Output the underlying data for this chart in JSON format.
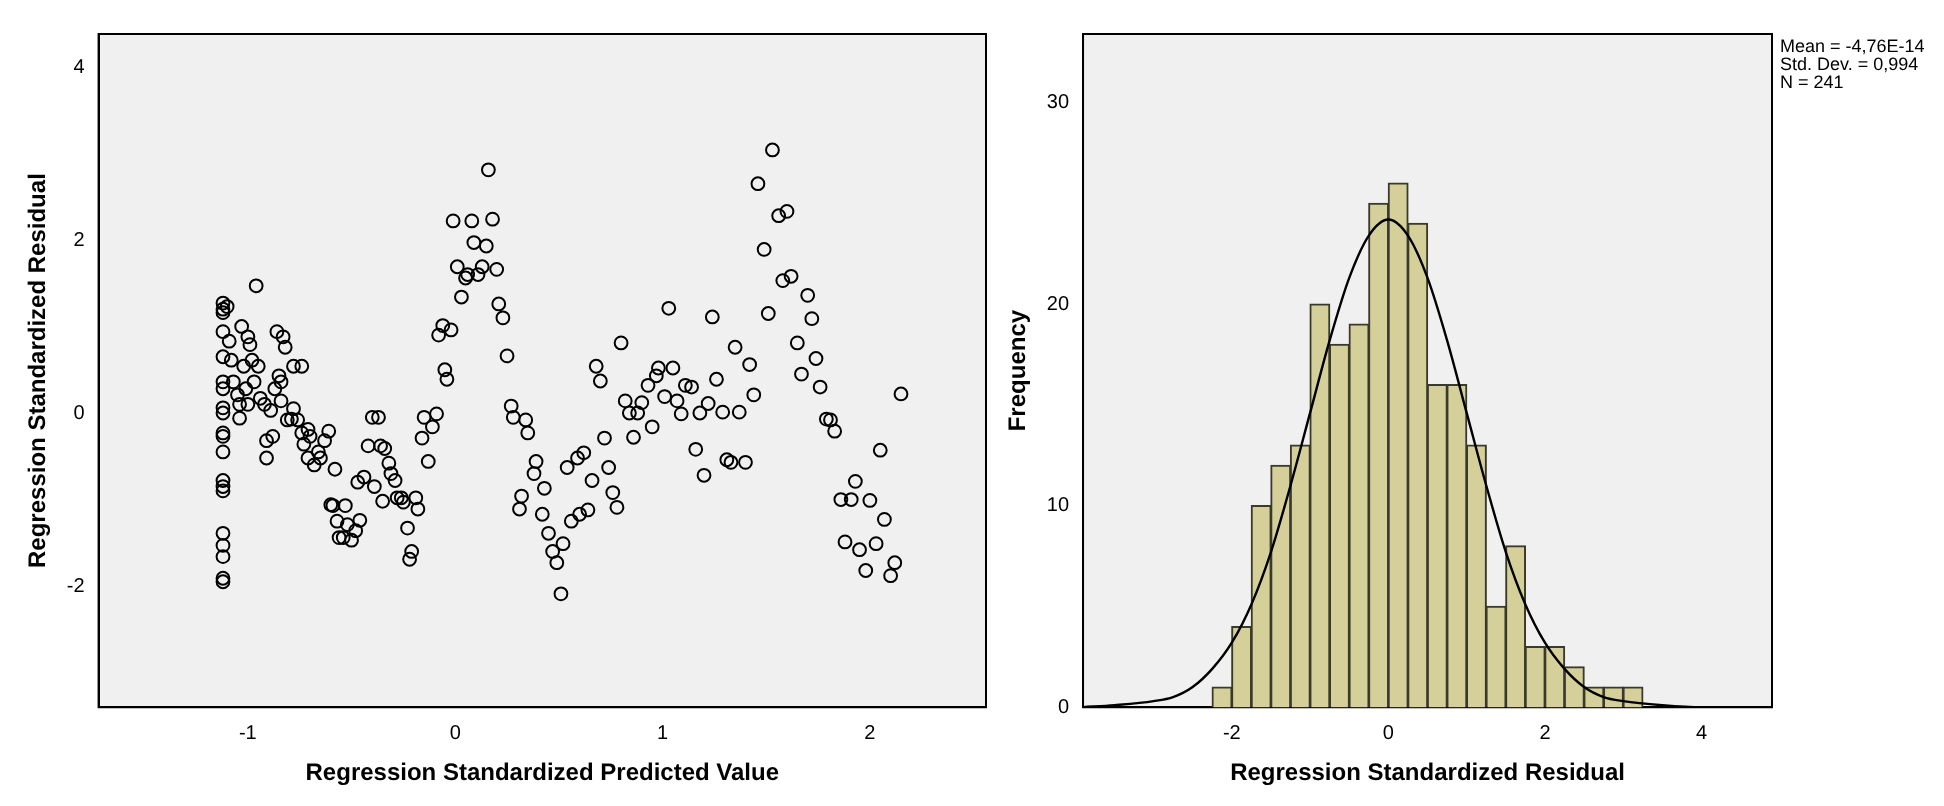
{
  "chart_data": [
    {
      "type": "scatter",
      "xlabel": "Regression Standardized Predicted Value",
      "ylabel": "Regression Standardized Residual",
      "marker": "circle",
      "color": "#000000",
      "xlim": [
        -1.72,
        2.56
      ],
      "ylim": [
        -3.39,
        4.39
      ],
      "xticks": [
        -1,
        0,
        1,
        2
      ],
      "yticks": [
        -2,
        0,
        2,
        4
      ],
      "x": [
        -1.12,
        -1.12,
        -1.12,
        -1.12,
        -1.12,
        -1.12,
        -1.12,
        -1.12,
        -1.12,
        -1.12,
        -1.12,
        -1.12,
        -1.12,
        -1.12,
        -1.12,
        -1.12,
        -1.12,
        -1.12,
        -1.12,
        -1.12,
        -1.1,
        -1.09,
        -1.08,
        -1.07,
        -1.05,
        -1.04,
        -1.04,
        -1.03,
        -1.02,
        -1.01,
        -1.0,
        -1.0,
        -0.99,
        -0.98,
        -0.97,
        -0.96,
        -0.95,
        -0.94,
        -0.92,
        -0.91,
        -0.91,
        -0.89,
        -0.88,
        -0.87,
        -0.86,
        -0.85,
        -0.84,
        -0.84,
        -0.83,
        -0.82,
        -0.81,
        -0.79,
        -0.78,
        -0.78,
        -0.76,
        -0.74,
        -0.74,
        -0.73,
        -0.71,
        -0.71,
        -0.7,
        -0.68,
        -0.66,
        -0.65,
        -0.63,
        -0.61,
        -0.6,
        -0.59,
        -0.58,
        -0.57,
        -0.56,
        -0.54,
        -0.53,
        -0.52,
        -0.5,
        -0.48,
        -0.47,
        -0.46,
        -0.44,
        -0.42,
        -0.4,
        -0.39,
        -0.37,
        -0.36,
        -0.35,
        -0.34,
        -0.32,
        -0.31,
        -0.29,
        -0.28,
        -0.26,
        -0.25,
        -0.23,
        -0.22,
        -0.21,
        -0.19,
        -0.18,
        -0.16,
        -0.15,
        -0.13,
        -0.11,
        -0.09,
        -0.08,
        -0.06,
        -0.05,
        -0.04,
        -0.02,
        -0.01,
        0.01,
        0.03,
        0.05,
        0.06,
        0.08,
        0.09,
        0.11,
        0.13,
        0.15,
        0.16,
        0.18,
        0.2,
        0.21,
        0.23,
        0.25,
        0.27,
        0.28,
        0.31,
        0.32,
        0.34,
        0.35,
        0.38,
        0.39,
        0.42,
        0.43,
        0.45,
        0.47,
        0.49,
        0.51,
        0.52,
        0.54,
        0.56,
        0.59,
        0.6,
        0.62,
        0.64,
        0.66,
        0.68,
        0.7,
        0.72,
        0.74,
        0.76,
        0.78,
        0.8,
        0.82,
        0.84,
        0.86,
        0.88,
        0.9,
        0.93,
        0.95,
        0.97,
        0.98,
        1.01,
        1.03,
        1.05,
        1.07,
        1.09,
        1.11,
        1.14,
        1.16,
        1.18,
        1.2,
        1.22,
        1.24,
        1.26,
        1.29,
        1.31,
        1.33,
        1.35,
        1.37,
        1.4,
        1.42,
        1.44,
        1.46,
        1.49,
        1.51,
        1.53,
        1.56,
        1.58,
        1.6,
        1.62,
        1.65,
        1.67,
        1.7,
        1.72,
        1.74,
        1.76,
        1.79,
        1.81,
        1.83,
        1.86,
        1.88,
        1.91,
        1.93,
        1.95,
        1.98,
        2.0,
        2.03,
        2.05,
        2.07,
        2.1,
        2.12,
        2.15
      ],
      "values": [
        1.28,
        1.21,
        1.17,
        0.95,
        0.66,
        0.37,
        0.29,
        0.07,
        0.01,
        -0.22,
        -0.26,
        -0.44,
        -0.77,
        -0.84,
        -0.89,
        -1.38,
        -1.52,
        -1.65,
        -1.9,
        -1.94,
        1.24,
        0.84,
        0.62,
        0.37,
        0.22,
        0.11,
        -0.05,
        1.01,
        0.55,
        0.29,
        0.11,
        0.89,
        0.8,
        0.62,
        0.37,
        1.48,
        0.55,
        0.18,
        0.11,
        -0.31,
        -0.51,
        0.04,
        -0.26,
        0.29,
        0.95,
        0.44,
        0.37,
        0.15,
        0.89,
        0.77,
        -0.07,
        -0.06,
        0.55,
        0.06,
        -0.07,
        0.55,
        -0.22,
        -0.35,
        -0.51,
        -0.18,
        -0.26,
        -0.59,
        -0.44,
        -0.51,
        -0.31,
        -0.2,
        -1.05,
        -1.06,
        -0.64,
        -1.24,
        -1.43,
        -1.43,
        -1.06,
        -1.28,
        -1.46,
        -1.35,
        -0.79,
        -1.23,
        -0.73,
        -0.37,
        -0.04,
        -0.84,
        -0.04,
        -0.37,
        -1.01,
        -0.4,
        -0.57,
        -0.69,
        -0.77,
        -0.97,
        -0.97,
        -1.02,
        -1.32,
        -1.68,
        -1.59,
        -0.97,
        -1.1,
        -0.28,
        -0.04,
        -0.55,
        -0.15,
        0.0,
        0.91,
        1.02,
        0.51,
        0.4,
        0.97,
        2.23,
        1.7,
        1.35,
        1.57,
        1.61,
        2.23,
        1.98,
        1.61,
        1.7,
        1.94,
        2.82,
        2.25,
        1.67,
        1.27,
        1.11,
        0.67,
        0.09,
        -0.04,
        -1.1,
        -0.95,
        -0.07,
        -0.22,
        -0.69,
        -0.55,
        -1.16,
        -0.86,
        -1.38,
        -1.59,
        -1.72,
        -2.08,
        -1.5,
        -0.62,
        -1.24,
        -0.51,
        -1.16,
        -0.45,
        -1.11,
        -0.77,
        0.55,
        0.38,
        -0.28,
        -0.62,
        -0.91,
        -1.08,
        0.82,
        0.15,
        0.01,
        -0.27,
        0.01,
        0.13,
        0.33,
        -0.15,
        0.44,
        0.53,
        0.2,
        1.22,
        0.53,
        0.15,
        0.0,
        0.33,
        0.31,
        -0.41,
        0.01,
        -0.71,
        0.12,
        1.12,
        0.4,
        0.02,
        -0.53,
        -0.56,
        0.77,
        0.02,
        -0.56,
        0.57,
        0.22,
        2.66,
        1.9,
        1.16,
        3.05,
        2.29,
        1.54,
        2.34,
        1.59,
        0.82,
        0.46,
        1.37,
        1.1,
        0.64,
        0.31,
        -0.06,
        -0.07,
        -0.2,
        -0.99,
        -1.48,
        -0.99,
        -0.78,
        -1.57,
        -1.81,
        -1.0,
        -1.5,
        -0.42,
        -1.22,
        -1.87,
        -1.72,
        0.23
      ]
    },
    {
      "type": "histogram",
      "xlabel": "Regression Standardized Residual",
      "ylabel": "Frequency",
      "color": "#d5cf9a",
      "xlim": [
        -3.9,
        4.9
      ],
      "ylim": [
        0,
        33.4
      ],
      "xticks": [
        -2,
        0,
        2,
        4
      ],
      "yticks": [
        0,
        10,
        20,
        30
      ],
      "annotations": [
        "Mean = -4,76E-14",
        "Std. Dev. = 0,994",
        "N = 241"
      ],
      "bins": [
        -2.25,
        -2,
        -1.75,
        -1.5,
        -1.25,
        -1,
        -0.75,
        -0.5,
        -0.25,
        0,
        0.25,
        0.5,
        0.75,
        1,
        1.25,
        1.5,
        1.75,
        2,
        2.25,
        2.5,
        2.75,
        3,
        3.25
      ],
      "values": [
        1,
        4,
        10,
        12,
        13,
        20,
        18,
        19,
        25,
        26,
        24,
        16,
        16,
        13,
        5,
        8,
        3,
        3,
        2,
        1,
        1,
        1
      ],
      "series": [
        {
          "type": "line",
          "color": "#000000",
          "x": [
            -3.9,
            -3.5,
            -3,
            -2.75,
            -2.5,
            -2.25,
            -2,
            -1.75,
            -1.5,
            -1.25,
            -1,
            -0.75,
            -0.5,
            -0.25,
            0,
            0.25,
            0.5,
            0.75,
            1,
            1.25,
            1.5,
            1.75,
            2,
            2.25,
            2.5,
            2.75,
            3,
            3.5,
            4,
            4.9
          ],
          "values": [
            0,
            0.1,
            0.3,
            0.5,
            1.0,
            1.9,
            3.2,
            5.1,
            7.7,
            11.0,
            14.6,
            18.2,
            21.3,
            23.4,
            24.2,
            23.4,
            21.3,
            18.2,
            14.6,
            11.0,
            7.7,
            5.1,
            3.2,
            1.9,
            1.0,
            0.5,
            0.3,
            0.1,
            0,
            0
          ]
        }
      ]
    }
  ]
}
